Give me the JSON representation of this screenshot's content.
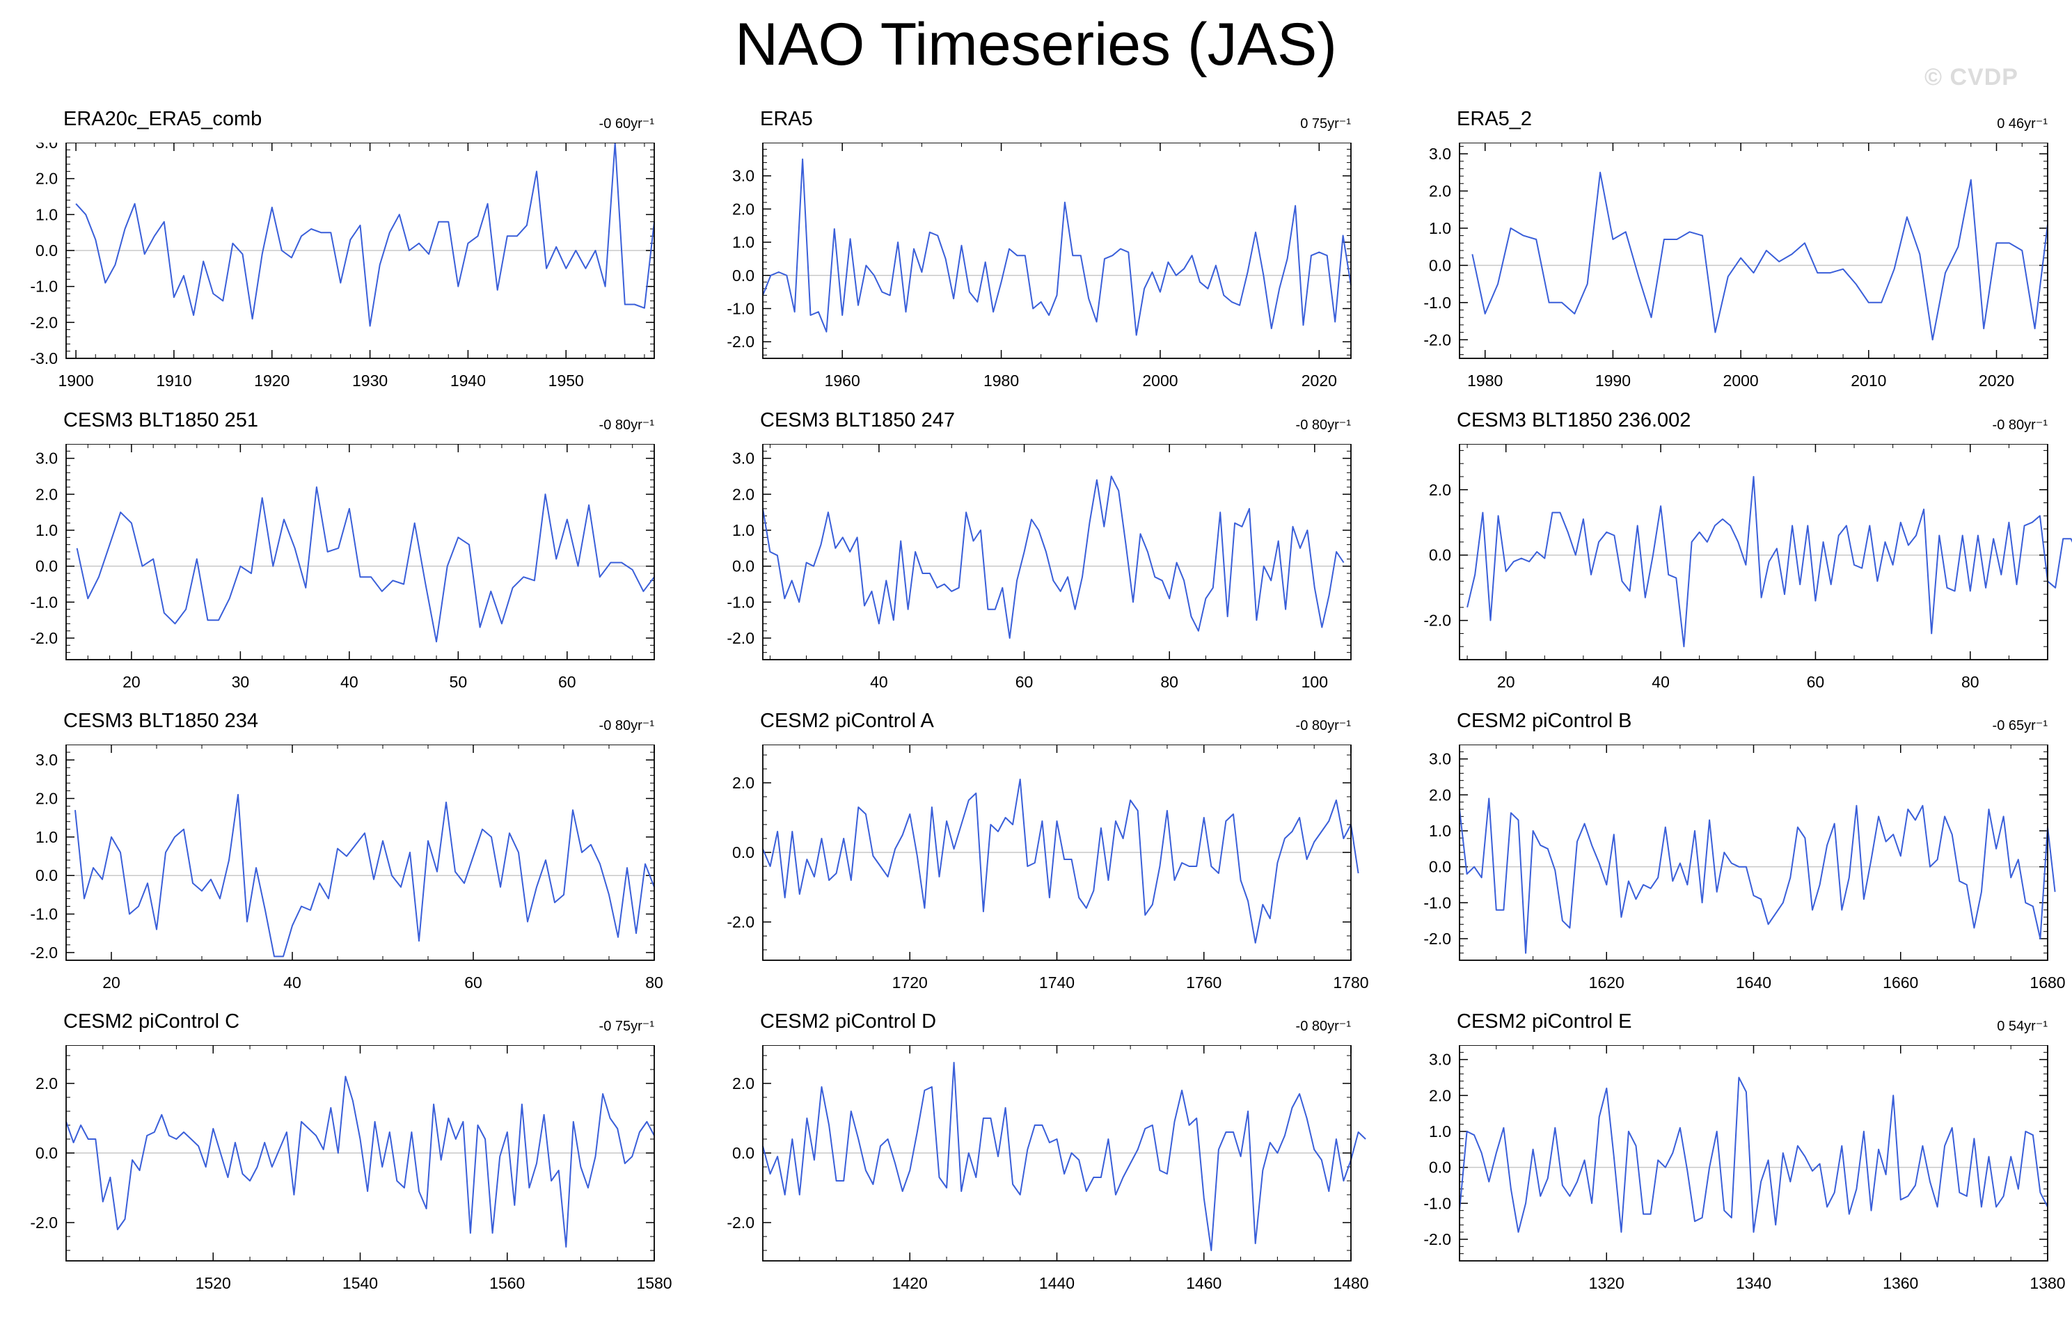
{
  "title": "NAO Timeseries (JAS)",
  "watermark": "© CVDP",
  "chart_data": [
    {
      "type": "line",
      "title": "ERA20c_ERA5_comb",
      "trend": "-0 60yr⁻¹",
      "xlim": [
        1899,
        1959
      ],
      "ylim": [
        -3,
        3
      ],
      "xticks": [
        1900,
        1910,
        1920,
        1930,
        1940,
        1950
      ],
      "yticks": [
        -3,
        -2,
        -1,
        0,
        1,
        2,
        3
      ],
      "yticklabels": [
        "-3.0",
        "-2.0",
        "-1.0",
        "0.0",
        "1.0",
        "2.0",
        "3.0"
      ],
      "x0": 1900,
      "dx": 1,
      "values": [
        1.3,
        1.0,
        0.3,
        -0.9,
        -0.4,
        0.6,
        1.3,
        -0.1,
        0.4,
        0.8,
        -1.3,
        -0.7,
        -1.8,
        -0.3,
        -1.2,
        -1.4,
        0.2,
        -0.1,
        -1.9,
        -0.1,
        1.2,
        0.0,
        -0.2,
        0.4,
        0.6,
        0.5,
        0.5,
        -0.9,
        0.3,
        0.7,
        -2.1,
        -0.4,
        0.5,
        1.0,
        0.0,
        0.2,
        -0.1,
        0.8,
        0.8,
        -1.0,
        0.2,
        0.4,
        1.3,
        -1.1,
        0.4,
        0.4,
        0.7,
        2.2,
        -0.5,
        0.1,
        -0.5,
        0.0,
        -0.5,
        0.0,
        -1.0,
        3.0,
        -1.5,
        -1.5,
        -1.6,
        0.8
      ]
    },
    {
      "type": "line",
      "title": "ERA5",
      "trend": "0 75yr⁻¹",
      "xlim": [
        1950,
        2024
      ],
      "ylim": [
        -2.5,
        4.0
      ],
      "xticks": [
        1960,
        1980,
        2000,
        2020
      ],
      "yticks": [
        -2,
        -1,
        0,
        1,
        2,
        3
      ],
      "yticklabels": [
        "-2.0",
        "-1.0",
        "0.0",
        "1.0",
        "2.0",
        "3.0"
      ],
      "x0": 1950,
      "dx": 1,
      "values": [
        -0.6,
        0.0,
        0.1,
        0.0,
        -1.1,
        3.5,
        -1.2,
        -1.1,
        -1.7,
        1.4,
        -1.2,
        1.1,
        -0.9,
        0.3,
        0.0,
        -0.5,
        -0.6,
        1.0,
        -1.1,
        0.8,
        0.1,
        1.3,
        1.2,
        0.5,
        -0.7,
        0.9,
        -0.5,
        -0.8,
        0.4,
        -1.1,
        -0.2,
        0.8,
        0.6,
        0.6,
        -1.0,
        -0.8,
        -1.2,
        -0.6,
        2.2,
        0.6,
        0.6,
        -0.7,
        -1.4,
        0.5,
        0.6,
        0.8,
        0.7,
        -1.8,
        -0.4,
        0.1,
        -0.5,
        0.4,
        0.0,
        0.2,
        0.6,
        -0.2,
        -0.4,
        0.3,
        -0.6,
        -0.8,
        -0.9,
        0.1,
        1.3,
        0.0,
        -1.6,
        -0.4,
        0.5,
        2.1,
        -1.5,
        0.6,
        0.7,
        0.6,
        -1.4,
        1.2,
        -0.3
      ]
    },
    {
      "type": "line",
      "title": "ERA5_2",
      "trend": "0 46yr⁻¹",
      "xlim": [
        1978,
        2024
      ],
      "ylim": [
        -2.5,
        3.3
      ],
      "xticks": [
        1980,
        1990,
        2000,
        2010,
        2020
      ],
      "yticks": [
        -2,
        -1,
        0,
        1,
        2,
        3
      ],
      "yticklabels": [
        "-2.0",
        "-1.0",
        "0.0",
        "1.0",
        "2.0",
        "3.0"
      ],
      "x0": 1979,
      "dx": 1,
      "values": [
        0.3,
        -1.3,
        -0.5,
        1.0,
        0.8,
        0.7,
        -1.0,
        -1.0,
        -1.3,
        -0.5,
        2.5,
        0.7,
        0.9,
        -0.3,
        -1.4,
        0.7,
        0.7,
        0.9,
        0.8,
        -1.8,
        -0.3,
        0.2,
        -0.2,
        0.4,
        0.1,
        0.3,
        0.6,
        -0.2,
        -0.2,
        -0.1,
        -0.5,
        -1.0,
        -1.0,
        -0.1,
        1.3,
        0.3,
        -2.0,
        -0.2,
        0.5,
        2.3,
        -1.7,
        0.6,
        0.6,
        0.4,
        -1.7,
        1.1
      ]
    },
    {
      "type": "line",
      "title": "CESM3 BLT1850 251",
      "trend": "-0 80yr⁻¹",
      "xlim": [
        14,
        68
      ],
      "ylim": [
        -2.6,
        3.4
      ],
      "xticks": [
        20,
        30,
        40,
        50,
        60
      ],
      "yticks": [
        -2,
        -1,
        0,
        1,
        2,
        3
      ],
      "yticklabels": [
        "-2.0",
        "-1.0",
        "0.0",
        "1.0",
        "2.0",
        "3.0"
      ],
      "x0": 15,
      "dx": 1,
      "values": [
        0.5,
        -0.9,
        -0.3,
        0.6,
        1.5,
        1.2,
        0.0,
        0.2,
        -1.3,
        -1.6,
        -1.2,
        0.2,
        -1.5,
        -1.5,
        -0.9,
        0.0,
        -0.2,
        1.9,
        0.0,
        1.3,
        0.5,
        -0.6,
        2.2,
        0.4,
        0.5,
        1.6,
        -0.3,
        -0.3,
        -0.7,
        -0.4,
        -0.5,
        1.2,
        -0.5,
        -2.1,
        0.0,
        0.8,
        0.6,
        -1.7,
        -0.7,
        -1.6,
        -0.6,
        -0.3,
        -0.4,
        2.0,
        0.2,
        1.3,
        0.0,
        1.7,
        -0.3,
        0.1,
        0.1,
        -0.1,
        -0.7,
        -0.3
      ]
    },
    {
      "type": "line",
      "title": "CESM3 BLT1850 247",
      "trend": "-0 80yr⁻¹",
      "xlim": [
        24,
        105
      ],
      "ylim": [
        -2.6,
        3.4
      ],
      "xticks": [
        40,
        60,
        80,
        100
      ],
      "yticks": [
        -2,
        -1,
        0,
        1,
        2,
        3
      ],
      "yticklabels": [
        "-2.0",
        "-1.0",
        "0.0",
        "1.0",
        "2.0",
        "3.0"
      ],
      "x0": 24,
      "dx": 1,
      "values": [
        1.6,
        0.4,
        0.3,
        -0.9,
        -0.4,
        -1.0,
        0.1,
        0.0,
        0.6,
        1.5,
        0.5,
        0.8,
        0.4,
        0.8,
        -1.1,
        -0.7,
        -1.6,
        -0.4,
        -1.5,
        0.7,
        -1.2,
        0.4,
        -0.2,
        -0.2,
        -0.6,
        -0.5,
        -0.7,
        -0.6,
        1.5,
        0.7,
        1.0,
        -1.2,
        -1.2,
        -0.6,
        -2.0,
        -0.4,
        0.4,
        1.3,
        1.0,
        0.4,
        -0.4,
        -0.7,
        -0.3,
        -1.2,
        -0.3,
        1.2,
        2.4,
        1.1,
        2.5,
        2.1,
        0.6,
        -1.0,
        0.9,
        0.4,
        -0.3,
        -0.4,
        -0.9,
        0.1,
        -0.4,
        -1.4,
        -1.8,
        -0.9,
        -0.6,
        1.5,
        -1.4,
        1.2,
        1.1,
        1.6,
        -1.5,
        0.0,
        -0.4,
        0.7,
        -1.2,
        1.1,
        0.5,
        1.0,
        -0.6,
        -1.7,
        -0.8,
        0.4,
        0.1
      ]
    },
    {
      "type": "line",
      "title": "CESM3 BLT1850 236.002",
      "trend": "-0 80yr⁻¹",
      "xlim": [
        14,
        90
      ],
      "ylim": [
        -3.2,
        3.4
      ],
      "xticks": [
        20,
        40,
        60,
        80
      ],
      "yticks": [
        -2,
        0,
        2
      ],
      "yticklabels": [
        "-2.0",
        "0.0",
        "2.0"
      ],
      "x0": 15,
      "dx": 1,
      "values": [
        -1.6,
        -0.6,
        1.3,
        -2.0,
        1.2,
        -0.5,
        -0.2,
        -0.1,
        -0.2,
        0.1,
        -0.1,
        1.3,
        1.3,
        0.7,
        0.0,
        1.1,
        -0.6,
        0.4,
        0.7,
        0.6,
        -0.8,
        -1.1,
        0.9,
        -1.3,
        0.0,
        1.5,
        -0.6,
        -0.7,
        -2.8,
        0.4,
        0.7,
        0.4,
        0.9,
        1.1,
        0.9,
        0.4,
        -0.3,
        2.4,
        -1.3,
        -0.2,
        0.2,
        -1.2,
        0.9,
        -0.9,
        0.9,
        -1.4,
        0.4,
        -0.9,
        0.6,
        0.9,
        -0.3,
        -0.4,
        0.9,
        -0.8,
        0.4,
        -0.3,
        1.0,
        0.3,
        0.6,
        1.4,
        -2.4,
        0.6,
        -1.0,
        -1.1,
        0.6,
        -1.1,
        0.6,
        -1.0,
        0.5,
        -0.6,
        1.0,
        -0.9,
        0.9,
        1.0,
        1.2,
        -0.8,
        -1.0,
        0.5,
        0.5,
        0.0,
        0.3,
        1.0
      ]
    },
    {
      "type": "line",
      "title": "CESM3 BLT1850 234",
      "trend": "-0 80yr⁻¹",
      "xlim": [
        15,
        80
      ],
      "ylim": [
        -2.2,
        3.4
      ],
      "xticks": [
        20,
        40,
        60,
        80
      ],
      "yticks": [
        -2,
        -1,
        0,
        1,
        2,
        3
      ],
      "yticklabels": [
        "-2.0",
        "-1.0",
        "0.0",
        "1.0",
        "2.0",
        "3.0"
      ],
      "x0": 16,
      "dx": 1,
      "values": [
        1.7,
        -0.6,
        0.2,
        -0.1,
        1.0,
        0.6,
        -1.0,
        -0.8,
        -0.2,
        -1.4,
        0.6,
        1.0,
        1.2,
        -0.2,
        -0.4,
        -0.1,
        -0.6,
        0.4,
        2.1,
        -1.2,
        0.2,
        -0.9,
        -2.1,
        -2.1,
        -1.3,
        -0.8,
        -0.9,
        -0.2,
        -0.6,
        0.7,
        0.5,
        0.8,
        1.1,
        -0.1,
        0.9,
        0.0,
        -0.3,
        0.6,
        -1.7,
        0.9,
        0.1,
        1.9,
        0.1,
        -0.2,
        0.5,
        1.2,
        1.0,
        -0.3,
        1.1,
        0.6,
        -1.2,
        -0.3,
        0.4,
        -0.7,
        -0.5,
        1.7,
        0.6,
        0.8,
        0.3,
        -0.5,
        -1.6,
        0.2,
        -1.5,
        0.3,
        -0.3
      ]
    },
    {
      "type": "line",
      "title": "CESM2 piControl A",
      "trend": "-0 80yr⁻¹",
      "xlim": [
        1700,
        1780
      ],
      "ylim": [
        -3.1,
        3.1
      ],
      "xticks": [
        1720,
        1740,
        1760,
        1780
      ],
      "yticks": [
        -2,
        0,
        2
      ],
      "yticklabels": [
        "-2.0",
        "0.0",
        "2.0"
      ],
      "x0": 1700,
      "dx": 1,
      "values": [
        0.1,
        -0.4,
        0.6,
        -1.3,
        0.6,
        -1.2,
        -0.2,
        -0.7,
        0.4,
        -0.8,
        -0.6,
        0.4,
        -0.8,
        1.3,
        1.1,
        -0.1,
        -0.4,
        -0.7,
        0.1,
        0.5,
        1.1,
        -0.1,
        -1.6,
        1.3,
        -0.7,
        0.9,
        0.1,
        0.8,
        1.5,
        1.7,
        -1.7,
        0.8,
        0.6,
        1.0,
        0.8,
        2.1,
        -0.4,
        -0.3,
        0.9,
        -1.3,
        0.9,
        -0.2,
        -0.2,
        -1.3,
        -1.6,
        -1.1,
        0.7,
        -0.8,
        0.9,
        0.4,
        1.5,
        1.2,
        -1.8,
        -1.5,
        -0.4,
        1.2,
        -0.8,
        -0.3,
        -0.4,
        -0.4,
        1.0,
        -0.4,
        -0.6,
        0.9,
        1.1,
        -0.8,
        -1.4,
        -2.6,
        -1.5,
        -1.9,
        -0.3,
        0.4,
        0.6,
        1.0,
        -0.2,
        0.3,
        0.6,
        0.9,
        1.5,
        0.4,
        0.8,
        -0.6
      ]
    },
    {
      "type": "line",
      "title": "CESM2 piControl B",
      "trend": "-0 65yr⁻¹",
      "xlim": [
        1600,
        1680
      ],
      "ylim": [
        -2.6,
        3.4
      ],
      "xticks": [
        1620,
        1640,
        1660,
        1680
      ],
      "yticks": [
        -2,
        -1,
        0,
        1,
        2,
        3
      ],
      "yticklabels": [
        "-2.0",
        "-1.0",
        "0.0",
        "1.0",
        "2.0",
        "3.0"
      ],
      "x0": 1600,
      "dx": 1,
      "values": [
        1.6,
        -0.2,
        0.0,
        -0.3,
        1.9,
        -1.2,
        -1.2,
        1.5,
        1.3,
        -2.4,
        1.0,
        0.6,
        0.5,
        -0.1,
        -1.5,
        -1.7,
        0.7,
        1.2,
        0.6,
        0.1,
        -0.5,
        0.9,
        -1.4,
        -0.4,
        -0.9,
        -0.5,
        -0.6,
        -0.3,
        1.1,
        -0.4,
        0.1,
        -0.5,
        1.0,
        -1.0,
        1.3,
        -0.7,
        0.4,
        0.1,
        0.0,
        0.0,
        -0.8,
        -0.9,
        -1.6,
        -1.3,
        -1.0,
        -0.3,
        1.1,
        0.8,
        -1.2,
        -0.5,
        0.6,
        1.2,
        -1.2,
        -0.3,
        1.7,
        -0.9,
        0.2,
        1.4,
        0.7,
        0.9,
        0.3,
        1.6,
        1.3,
        1.7,
        0.0,
        0.2,
        1.4,
        0.9,
        -0.4,
        -0.5,
        -1.7,
        -0.7,
        1.6,
        0.5,
        1.4,
        -0.3,
        0.2,
        -1.0,
        -1.1,
        -2.0,
        1.1,
        -0.7
      ]
    },
    {
      "type": "line",
      "title": "CESM2 piControl C",
      "trend": "-0 75yr⁻¹",
      "xlim": [
        1500,
        1580
      ],
      "ylim": [
        -3.1,
        3.1
      ],
      "xticks": [
        1520,
        1540,
        1560,
        1580
      ],
      "yticks": [
        -2,
        0,
        2
      ],
      "yticklabels": [
        "-2.0",
        "0.0",
        "2.0"
      ],
      "x0": 1500,
      "dx": 1,
      "values": [
        0.9,
        0.3,
        0.8,
        0.4,
        0.4,
        -1.4,
        -0.7,
        -2.2,
        -1.9,
        -0.2,
        -0.5,
        0.5,
        0.6,
        1.1,
        0.5,
        0.4,
        0.6,
        0.4,
        0.2,
        -0.4,
        0.7,
        0.0,
        -0.7,
        0.3,
        -0.6,
        -0.8,
        -0.4,
        0.3,
        -0.4,
        0.1,
        0.6,
        -1.2,
        0.9,
        0.7,
        0.5,
        0.1,
        1.3,
        0.0,
        2.2,
        1.5,
        0.4,
        -1.1,
        0.9,
        -0.4,
        0.6,
        -0.8,
        -1.0,
        0.6,
        -1.1,
        -1.6,
        1.4,
        -0.2,
        1.0,
        0.4,
        0.9,
        -2.3,
        0.8,
        0.4,
        -2.3,
        -0.1,
        0.6,
        -1.5,
        1.4,
        -1.0,
        -0.3,
        1.1,
        -0.8,
        -0.5,
        -2.7,
        0.9,
        -0.4,
        -1.0,
        -0.1,
        1.7,
        1.0,
        0.7,
        -0.3,
        -0.1,
        0.6,
        0.9,
        0.5
      ]
    },
    {
      "type": "line",
      "title": "CESM2 piControl D",
      "trend": "-0 80yr⁻¹",
      "xlim": [
        1400,
        1480
      ],
      "ylim": [
        -3.1,
        3.1
      ],
      "xticks": [
        1420,
        1440,
        1460,
        1480
      ],
      "yticks": [
        -2,
        0,
        2
      ],
      "yticklabels": [
        "-2.0",
        "0.0",
        "2.0"
      ],
      "x0": 1400,
      "dx": 1,
      "values": [
        0.2,
        -0.6,
        -0.1,
        -1.2,
        0.4,
        -1.2,
        1.0,
        -0.2,
        1.9,
        0.8,
        -0.8,
        -0.8,
        1.2,
        0.4,
        -0.5,
        -0.9,
        0.2,
        0.4,
        -0.3,
        -1.1,
        -0.5,
        0.6,
        1.8,
        1.9,
        -0.7,
        -1.0,
        2.6,
        -1.1,
        0.0,
        -0.7,
        1.0,
        1.0,
        -0.1,
        1.3,
        -0.9,
        -1.2,
        0.1,
        0.8,
        0.8,
        0.3,
        0.4,
        -0.6,
        0.0,
        -0.2,
        -1.1,
        -0.7,
        -0.7,
        0.4,
        -1.2,
        -0.7,
        -0.3,
        0.1,
        0.7,
        0.8,
        -0.5,
        -0.6,
        0.9,
        1.8,
        0.8,
        1.0,
        -1.3,
        -2.8,
        0.1,
        0.6,
        0.6,
        -0.1,
        1.2,
        -2.6,
        -0.5,
        0.3,
        0.0,
        0.5,
        1.3,
        1.7,
        1.0,
        0.1,
        -0.2,
        -1.1,
        0.4,
        -0.8,
        -0.2,
        0.6,
        0.4
      ]
    },
    {
      "type": "line",
      "title": "CESM2 piControl E",
      "trend": "0 54yr⁻¹",
      "xlim": [
        1300,
        1380
      ],
      "ylim": [
        -2.6,
        3.4
      ],
      "xticks": [
        1320,
        1340,
        1360,
        1380
      ],
      "yticks": [
        -2,
        -1,
        0,
        1,
        2,
        3
      ],
      "yticklabels": [
        "-2.0",
        "-1.0",
        "0.0",
        "1.0",
        "2.0",
        "3.0"
      ],
      "x0": 1300,
      "dx": 1,
      "values": [
        -1.2,
        1.0,
        0.9,
        0.4,
        -0.4,
        0.4,
        1.1,
        -0.6,
        -1.8,
        -1.0,
        0.5,
        -0.8,
        -0.3,
        1.1,
        -0.5,
        -0.8,
        -0.4,
        0.2,
        -1.0,
        1.4,
        2.2,
        0.3,
        -1.8,
        1.0,
        0.6,
        -1.3,
        -1.3,
        0.2,
        0.0,
        0.4,
        1.1,
        -0.1,
        -1.5,
        -1.4,
        0.0,
        1.0,
        -1.2,
        -1.4,
        2.5,
        2.1,
        -1.8,
        -0.4,
        0.2,
        -1.6,
        0.4,
        -0.4,
        0.6,
        0.3,
        -0.1,
        0.1,
        -1.1,
        -0.7,
        0.6,
        -1.3,
        -0.6,
        1.0,
        -1.2,
        0.5,
        -0.2,
        2.0,
        -0.9,
        -0.8,
        -0.5,
        0.6,
        -0.4,
        -1.1,
        0.6,
        1.1,
        -0.7,
        -0.8,
        0.8,
        -1.1,
        0.3,
        -1.1,
        -0.8,
        0.3,
        -0.6,
        1.0,
        0.9,
        -0.7,
        -1.1
      ]
    }
  ]
}
